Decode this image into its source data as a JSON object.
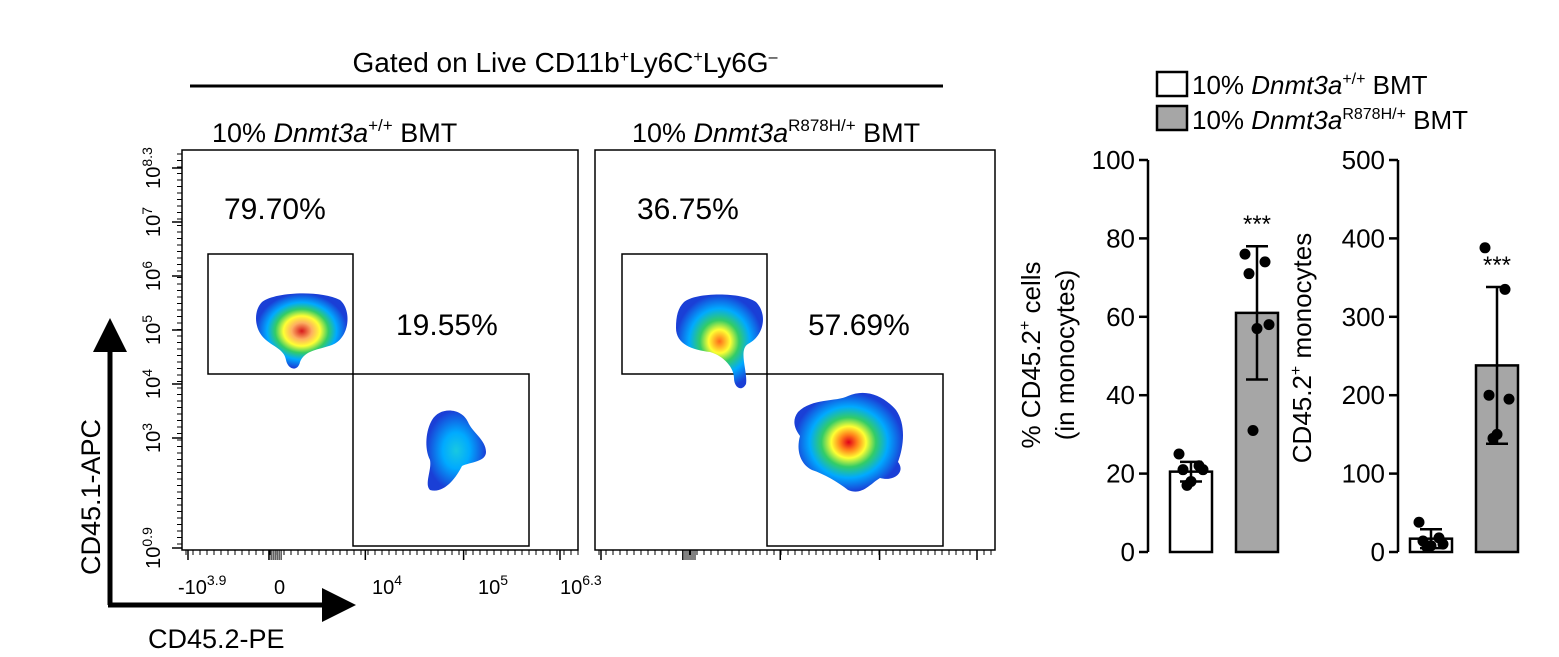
{
  "header": {
    "gate_title": "Gated on Live CD11b",
    "gate_sup1": "+",
    "gate_mid1": "Ly6C",
    "gate_sup2": "+",
    "gate_mid2": "Ly6G",
    "gate_sup3": "–"
  },
  "flow_panels": [
    {
      "title_pre": "10% ",
      "title_gene": "Dnmt3a",
      "title_sup": "+/+",
      "title_post": " BMT",
      "gate_upper_pct": "79.70%",
      "gate_lower_pct": "19.55%"
    },
    {
      "title_pre": "10% ",
      "title_gene": "Dnmt3a",
      "title_sup": "R878H/+",
      "title_post": " BMT",
      "gate_upper_pct": "36.75%",
      "gate_lower_pct": "57.69%"
    }
  ],
  "flow_axes": {
    "y_label": "CD45.1-APC",
    "x_label": "CD45.2-PE",
    "y_ticks": [
      {
        "base": "10",
        "exp": "0.9"
      },
      {
        "base": "10",
        "exp": "3"
      },
      {
        "base": "10",
        "exp": "4"
      },
      {
        "base": "10",
        "exp": "5"
      },
      {
        "base": "10",
        "exp": "6"
      },
      {
        "base": "10",
        "exp": "7"
      },
      {
        "base": "10",
        "exp": "8.3"
      }
    ],
    "x_ticks": [
      {
        "base": "-10",
        "exp": "3.9"
      },
      {
        "base": "0",
        "exp": ""
      },
      {
        "base": "10",
        "exp": "4"
      },
      {
        "base": "10",
        "exp": "5"
      },
      {
        "base": "10",
        "exp": "6.3"
      }
    ]
  },
  "legend": {
    "items": [
      {
        "pre": "10% ",
        "gene": "Dnmt3a",
        "sup": "+/+",
        "post": " BMT",
        "fill": "#ffffff"
      },
      {
        "pre": "10% ",
        "gene": "Dnmt3a",
        "sup": "R878H/+",
        "post": " BMT",
        "fill": "#a6a6a6"
      }
    ]
  },
  "chart_data": [
    {
      "type": "bar",
      "ylabel_main": "% CD45.2",
      "ylabel_sup": "+",
      "ylabel_rest": " cells",
      "ylabel_line2": "(in monocytes)",
      "ylim": [
        0,
        100
      ],
      "yticks": [
        0,
        20,
        40,
        60,
        80,
        100
      ],
      "series": [
        {
          "name": "10% Dnmt3a+/+ BMT",
          "mean": 20.5,
          "sd": 2.5,
          "fill": "#ffffff",
          "points": [
            25,
            22,
            21,
            21,
            18,
            17
          ]
        },
        {
          "name": "10% Dnmt3aR878H/+ BMT",
          "mean": 61,
          "sd": 17,
          "fill": "#a6a6a6",
          "points": [
            76,
            74,
            71,
            58,
            57,
            31
          ]
        }
      ],
      "significance": "***"
    },
    {
      "type": "bar",
      "ylabel_main": "CD45.2",
      "ylabel_sup": "+",
      "ylabel_rest": " monocytes",
      "ylabel_line2": "",
      "ylim": [
        0,
        500
      ],
      "yticks": [
        0,
        100,
        200,
        300,
        400,
        500
      ],
      "series": [
        {
          "name": "10% Dnmt3a+/+ BMT",
          "mean": 17,
          "sd": 12,
          "fill": "#ffffff",
          "points": [
            38,
            18,
            14,
            10,
            8,
            6
          ]
        },
        {
          "name": "10% Dnmt3aR878H/+ BMT",
          "mean": 238,
          "sd": 100,
          "fill": "#a6a6a6",
          "points": [
            388,
            335,
            200,
            195,
            150,
            145
          ]
        }
      ],
      "significance": "***"
    }
  ]
}
